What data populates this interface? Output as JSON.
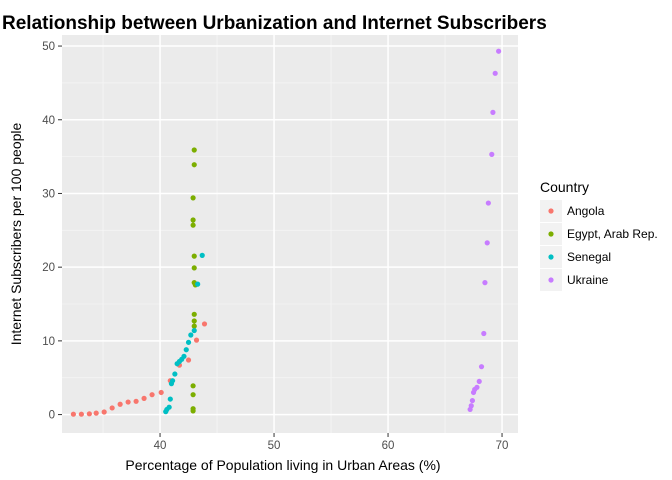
{
  "chart_data": {
    "type": "scatter",
    "title": "Relationship between Urbanization and Internet Subscribers",
    "xlabel": "Percentage of Population living in Urban Areas (%)",
    "ylabel": "Internet Subscribers per 100 people",
    "xlim": [
      31.4,
      71.4
    ],
    "ylim": [
      -2.5,
      51.5
    ],
    "xticks": [
      40,
      50,
      60,
      70
    ],
    "yticks": [
      0,
      10,
      20,
      30,
      40,
      50
    ],
    "grid": true,
    "legend": {
      "title": "Country",
      "position": "right"
    },
    "series": [
      {
        "name": "Angola",
        "color": "#F8766D",
        "points": [
          [
            32.4,
            0.05
          ],
          [
            33.1,
            0.05
          ],
          [
            33.8,
            0.1
          ],
          [
            34.4,
            0.2
          ],
          [
            35.1,
            0.35
          ],
          [
            35.8,
            0.9
          ],
          [
            36.5,
            1.4
          ],
          [
            37.2,
            1.7
          ],
          [
            37.9,
            1.8
          ],
          [
            38.6,
            2.2
          ],
          [
            39.3,
            2.7
          ],
          [
            40.1,
            3.0
          ],
          [
            40.9,
            4.6
          ],
          [
            41.7,
            6.7
          ],
          [
            42.5,
            7.4
          ],
          [
            43.2,
            10.1
          ],
          [
            43.9,
            12.3
          ]
        ]
      },
      {
        "name": "Egypt, Arab Rep.",
        "color": "#7CAE00",
        "points": [
          [
            42.9,
            0.5
          ],
          [
            42.9,
            0.8
          ],
          [
            42.9,
            2.7
          ],
          [
            42.9,
            3.9
          ],
          [
            43.0,
            12.0
          ],
          [
            43.0,
            12.7
          ],
          [
            43.0,
            13.6
          ],
          [
            43.1,
            17.6
          ],
          [
            43.0,
            17.9
          ],
          [
            43.0,
            19.9
          ],
          [
            43.0,
            21.5
          ],
          [
            42.9,
            25.7
          ],
          [
            42.9,
            26.4
          ],
          [
            42.9,
            29.4
          ],
          [
            43.0,
            33.9
          ],
          [
            43.0,
            35.9
          ]
        ]
      },
      {
        "name": "Senegal",
        "color": "#00BFC4",
        "points": [
          [
            40.5,
            0.4
          ],
          [
            40.6,
            0.7
          ],
          [
            40.8,
            1.0
          ],
          [
            40.9,
            2.1
          ],
          [
            41.0,
            4.2
          ],
          [
            41.1,
            4.6
          ],
          [
            41.3,
            5.5
          ],
          [
            41.5,
            6.9
          ],
          [
            41.7,
            7.2
          ],
          [
            41.9,
            7.5
          ],
          [
            42.1,
            7.9
          ],
          [
            42.3,
            8.8
          ],
          [
            42.5,
            9.8
          ],
          [
            42.7,
            10.8
          ],
          [
            43.0,
            11.4
          ],
          [
            43.3,
            17.7
          ],
          [
            43.7,
            21.6
          ]
        ]
      },
      {
        "name": "Ukraine",
        "color": "#C77CFF",
        "points": [
          [
            67.2,
            0.7
          ],
          [
            67.3,
            1.2
          ],
          [
            67.4,
            1.9
          ],
          [
            67.5,
            3.0
          ],
          [
            67.6,
            3.4
          ],
          [
            67.8,
            3.7
          ],
          [
            68.0,
            4.5
          ],
          [
            68.2,
            6.5
          ],
          [
            68.4,
            11.0
          ],
          [
            68.5,
            17.9
          ],
          [
            68.7,
            23.3
          ],
          [
            68.8,
            28.7
          ],
          [
            69.1,
            35.3
          ],
          [
            69.2,
            41.0
          ],
          [
            69.4,
            46.3
          ],
          [
            69.7,
            49.3
          ]
        ]
      }
    ]
  }
}
